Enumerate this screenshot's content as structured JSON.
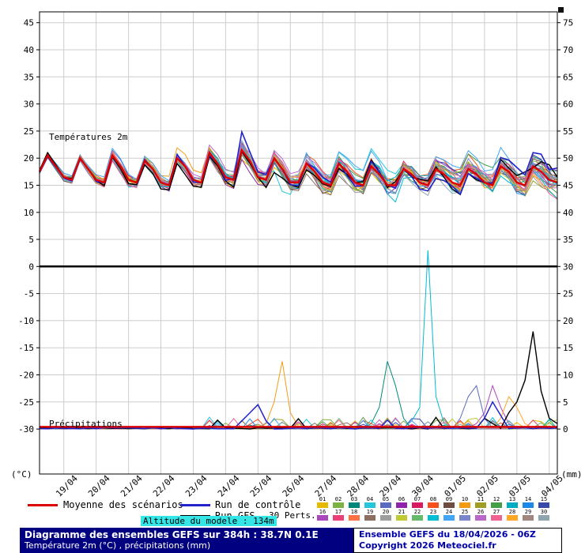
{
  "chart_data": {
    "type": "line",
    "title": "Diagramme des ensembles GEFS sur 384h : 38.7N 0.1E",
    "subtitle": "Température 2m (°C) , précipitations (mm)",
    "run_info": "Ensemble GEFS du 18/04/2026 - 06Z",
    "copyright": "Copyright 2026 Meteociel.fr",
    "altitude_note": "Altitude du modele : 134m",
    "temperature_label": "Températures 2m",
    "precipitation_label": "Précipitations",
    "left_axis_unit": "(°C)",
    "right_axis_unit": "(mm)",
    "time_step_hours": 6,
    "forecast_hours": 384,
    "x_dates": [
      "19/04",
      "20/04",
      "21/04",
      "22/04",
      "23/04",
      "24/04",
      "25/04",
      "26/04",
      "27/04",
      "28/04",
      "29/04",
      "30/04",
      "01/05",
      "02/05",
      "03/05",
      "04/05"
    ],
    "left_ticks": [
      45,
      40,
      35,
      30,
      25,
      20,
      15,
      10,
      5,
      0,
      -5,
      -10,
      -15,
      -20,
      -25,
      -30
    ],
    "right_ticks": [
      75,
      70,
      65,
      60,
      55,
      50,
      45,
      40,
      35,
      30,
      25,
      20,
      15,
      10,
      5,
      0
    ],
    "mean_color": "#dd0000",
    "control_color": "#2222cc",
    "gfs_color": "#000000",
    "grid_color": "#cdcdcd",
    "mean_temperature": [
      17.5,
      20.5,
      18.5,
      16.5,
      16.0,
      20.0,
      18.0,
      16.0,
      15.5,
      20.5,
      18.5,
      16.0,
      15.5,
      19.5,
      18.0,
      15.5,
      15.0,
      20.0,
      18.5,
      16.0,
      15.5,
      21.0,
      19.0,
      16.5,
      16.0,
      21.5,
      19.5,
      16.5,
      16.0,
      20.0,
      18.0,
      15.5,
      15.5,
      19.0,
      17.5,
      15.5,
      15.0,
      19.0,
      17.5,
      15.5,
      15.0,
      18.5,
      17.0,
      15.0,
      15.0,
      18.0,
      17.0,
      15.5,
      15.0,
      18.0,
      17.0,
      15.5,
      15.0,
      18.0,
      17.0,
      15.5,
      15.0,
      18.5,
      17.5,
      15.5,
      15.0,
      18.5,
      17.5,
      16.0,
      15.5
    ],
    "precip_mean_mm": 0.4,
    "spread_start": 0.7,
    "spread_end": 3.6,
    "seed": 42,
    "member_colors": [
      "#e6b800",
      "#7cb342",
      "#00897b",
      "#26c6da",
      "#5c6bc0",
      "#8e24aa",
      "#d81b60",
      "#f4511e",
      "#6d4c41",
      "#f39c12",
      "#9e9d24",
      "#43a047",
      "#00acc1",
      "#1e88e5",
      "#3949ab",
      "#ab47bc",
      "#ec407a",
      "#ff7043",
      "#8d6e63",
      "#9e9e9e",
      "#c0ca33",
      "#66bb6a",
      "#00bcd4",
      "#42a5f5",
      "#7986cb",
      "#ba68c8",
      "#f06292",
      "#ffa726",
      "#a1887f",
      "#90a4ae"
    ],
    "member_extras": [
      {
        "index": 3,
        "points": [
          [
            174,
            -3.5
          ],
          [
            180,
            -5.0
          ],
          [
            186,
            -3.0
          ]
        ]
      },
      {
        "index": 22,
        "points": [
          [
            258,
            -2.5
          ],
          [
            264,
            -3.5
          ],
          [
            270,
            -2.0
          ]
        ]
      },
      {
        "index": 14,
        "points": [
          [
            366,
            2.5
          ],
          [
            372,
            3.0
          ],
          [
            378,
            2.0
          ]
        ]
      }
    ],
    "control_extra_peaks": [
      [
        144,
        1.0
      ],
      [
        150,
        3.5
      ],
      [
        156,
        1.2
      ]
    ],
    "gfs_extra_peaks": [
      [
        168,
        -1.2
      ],
      [
        174,
        -2.2
      ],
      [
        180,
        -1.2
      ],
      [
        360,
        1.0
      ],
      [
        366,
        -1.0
      ]
    ],
    "precip_events": [
      {
        "series": "member",
        "index": 9,
        "points": [
          [
            168,
            1.0
          ],
          [
            174,
            5.0
          ],
          [
            180,
            12.5
          ],
          [
            186,
            3.0
          ],
          [
            192,
            0.5
          ]
        ]
      },
      {
        "series": "member",
        "index": 2,
        "points": [
          [
            246,
            1.0
          ],
          [
            252,
            4.0
          ],
          [
            258,
            12.5
          ],
          [
            264,
            8.0
          ],
          [
            270,
            2.0
          ]
        ]
      },
      {
        "series": "member",
        "index": 22,
        "points": [
          [
            276,
            1.5
          ],
          [
            282,
            4.0
          ],
          [
            288,
            33.0
          ],
          [
            294,
            6.0
          ],
          [
            300,
            1.0
          ]
        ]
      },
      {
        "series": "member",
        "index": 15,
        "points": [
          [
            324,
            1.0
          ],
          [
            330,
            3.0
          ],
          [
            336,
            8.0
          ],
          [
            342,
            4.0
          ],
          [
            348,
            1.0
          ]
        ]
      },
      {
        "series": "member",
        "index": 4,
        "points": [
          [
            312,
            2.0
          ],
          [
            318,
            6.0
          ],
          [
            324,
            8.0
          ],
          [
            330,
            2.0
          ]
        ]
      },
      {
        "series": "member",
        "index": 27,
        "points": [
          [
            342,
            2.0
          ],
          [
            348,
            6.0
          ],
          [
            354,
            4.0
          ],
          [
            360,
            1.0
          ]
        ]
      },
      {
        "series": "control",
        "points": [
          [
            150,
            1.5
          ],
          [
            156,
            3.0
          ],
          [
            162,
            4.5
          ],
          [
            168,
            1.5
          ],
          [
            330,
            2.0
          ],
          [
            336,
            5.0
          ],
          [
            342,
            2.5
          ]
        ]
      },
      {
        "series": "gfs",
        "points": [
          [
            330,
            2.0
          ],
          [
            336,
            1.0
          ],
          [
            348,
            3.0
          ],
          [
            354,
            5.0
          ],
          [
            360,
            9.0
          ],
          [
            366,
            18.0
          ],
          [
            372,
            7.0
          ],
          [
            378,
            2.0
          ],
          [
            384,
            1.0
          ]
        ]
      }
    ]
  },
  "legend": {
    "mean_label": "Moyenne des scénarios",
    "control_label": "Run de contrôle",
    "gfs_label": "Run GFS",
    "perts_label": "30 Perts.",
    "pert_numbers": [
      "01",
      "02",
      "03",
      "04",
      "05",
      "06",
      "07",
      "08",
      "09",
      "10",
      "11",
      "12",
      "13",
      "14",
      "15",
      "16",
      "17",
      "18",
      "19",
      "20",
      "21",
      "22",
      "23",
      "24",
      "25",
      "26",
      "27",
      "28",
      "29",
      "30"
    ]
  }
}
